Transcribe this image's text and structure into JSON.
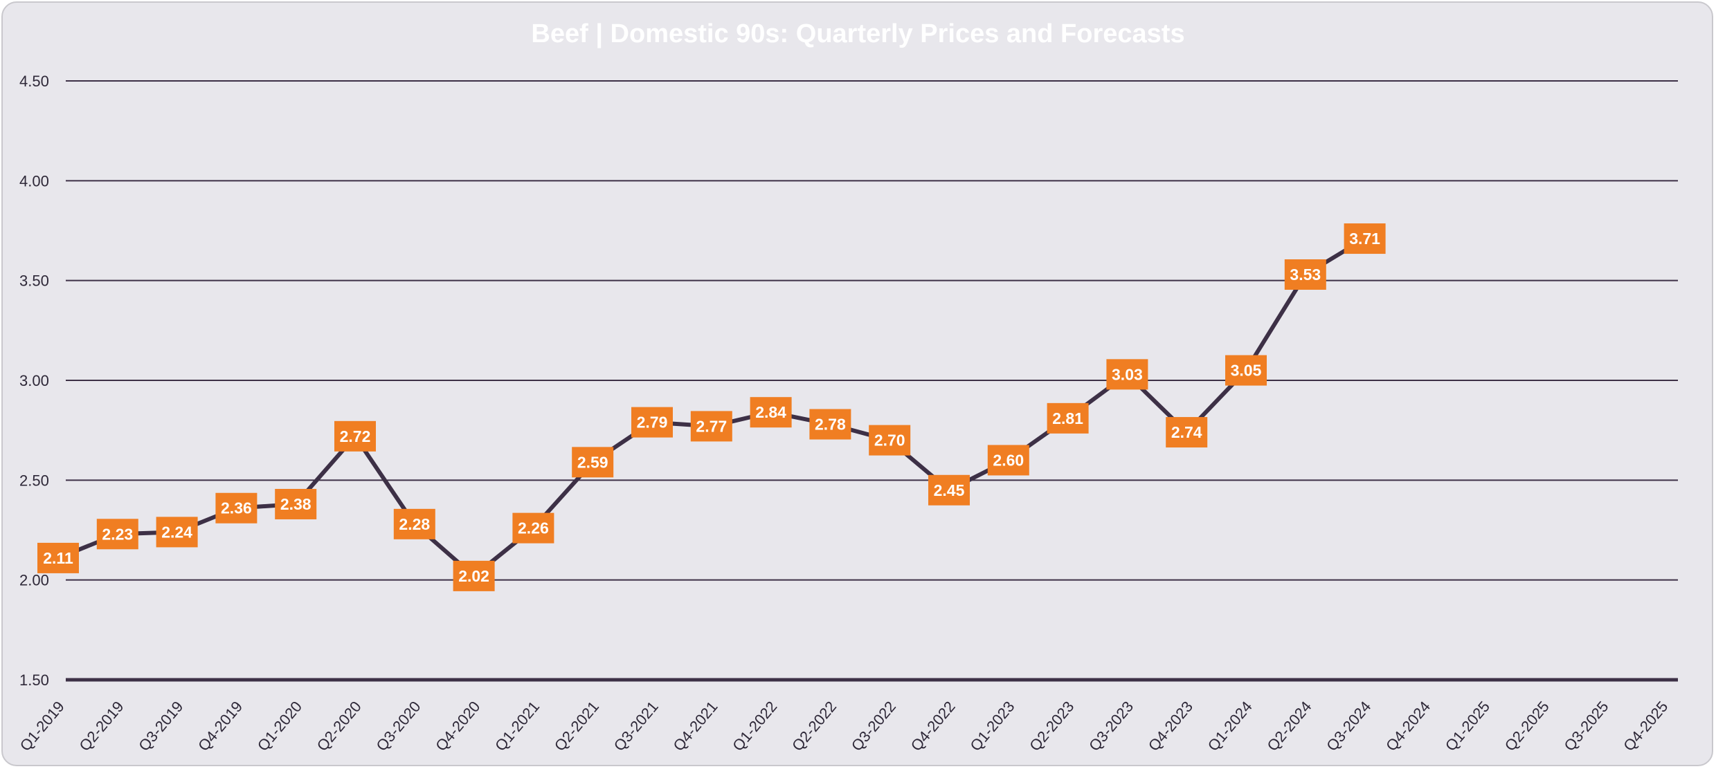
{
  "chart_data": {
    "type": "line",
    "title": "Beef | Domestic 90s: Quarterly Prices and Forecasts",
    "xlabel": "",
    "ylabel": "",
    "ylim": [
      1.5,
      4.5
    ],
    "yticks": [
      "4.50",
      "4.00",
      "3.50",
      "3.00",
      "2.50",
      "2.00",
      "1.50"
    ],
    "grid": true,
    "categories": [
      "Q1-2019",
      "Q2-2019",
      "Q3-2019",
      "Q4-2019",
      "Q1-2020",
      "Q2-2020",
      "Q3-2020",
      "Q4-2020",
      "Q1-2021",
      "Q2-2021",
      "Q3-2021",
      "Q4-2021",
      "Q1-2022",
      "Q2-2022",
      "Q3-2022",
      "Q4-2022",
      "Q1-2023",
      "Q2-2023",
      "Q3-2023",
      "Q4-2023",
      "Q1-2024",
      "Q2-2024",
      "Q3-2024",
      "Q4-2024",
      "Q1-2025",
      "Q2-2025",
      "Q3-2025",
      "Q4-2025"
    ],
    "values": [
      2.11,
      2.23,
      2.24,
      2.36,
      2.38,
      2.72,
      2.28,
      2.02,
      2.26,
      2.59,
      2.79,
      2.77,
      2.84,
      2.78,
      2.7,
      2.45,
      2.6,
      2.81,
      3.03,
      2.74,
      3.05,
      3.53,
      3.71,
      null,
      null,
      null,
      null,
      null
    ],
    "colors": {
      "line": "#3d3046",
      "label": "#f07e22",
      "background": "#e8e7ec",
      "grid": "#3d3046"
    }
  }
}
